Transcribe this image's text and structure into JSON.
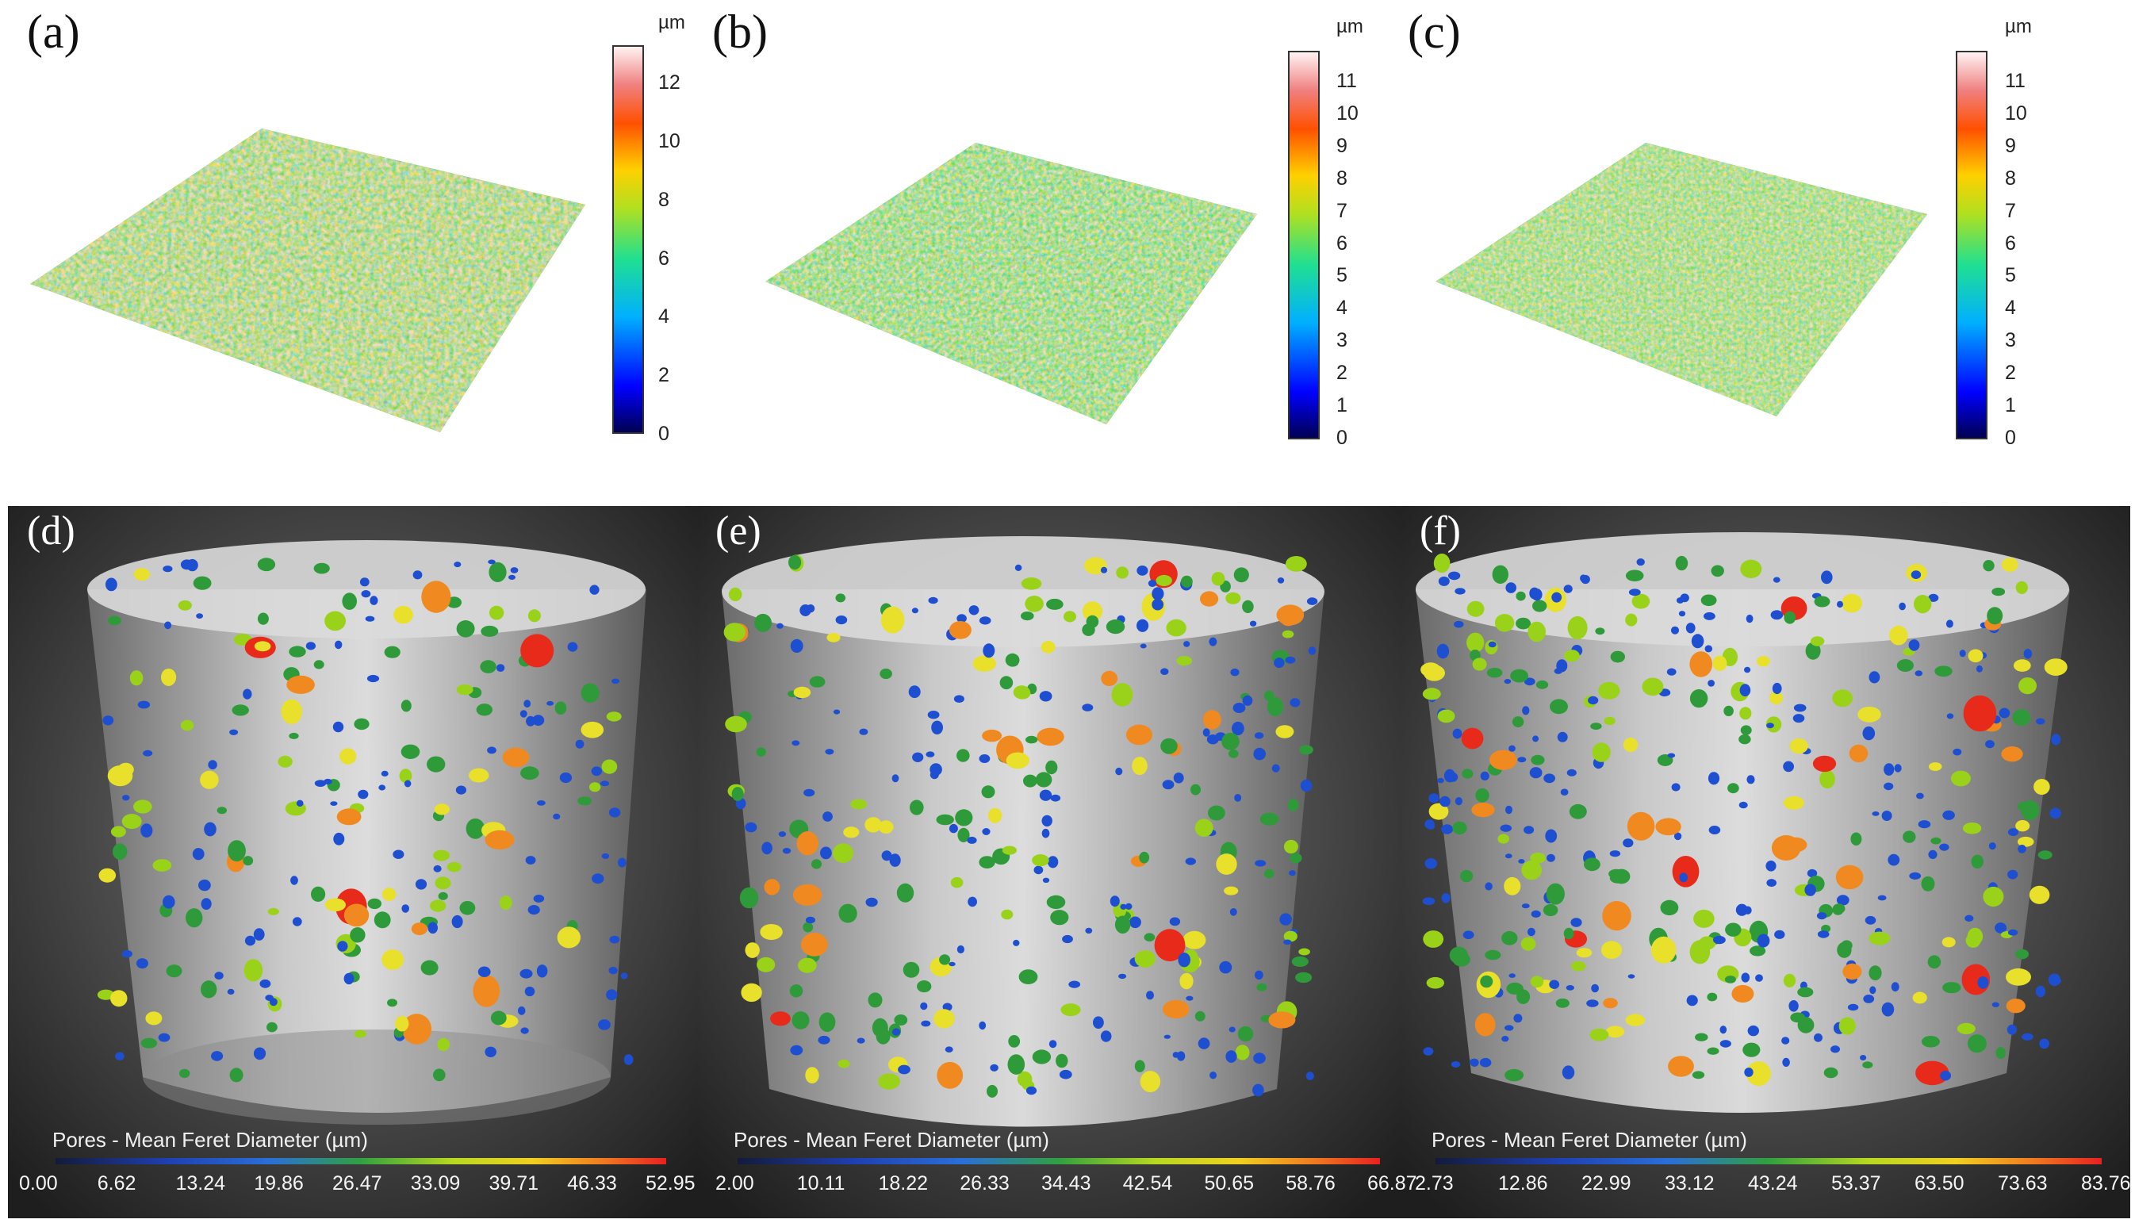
{
  "panels_top": [
    {
      "label": "(a)",
      "unit": "µm",
      "ticks": [
        "12",
        "10",
        "8",
        "6",
        "4",
        "2",
        "0"
      ]
    },
    {
      "label": "(b)",
      "unit": "µm",
      "ticks": [
        "11",
        "10",
        "9",
        "8",
        "7",
        "6",
        "5",
        "4",
        "3",
        "2",
        "1",
        "0"
      ]
    },
    {
      "label": "(c)",
      "unit": "µm",
      "ticks": [
        "11",
        "10",
        "9",
        "8",
        "7",
        "6",
        "5",
        "4",
        "3",
        "2",
        "1",
        "0"
      ]
    }
  ],
  "panels_bottom": [
    {
      "label": "(d)",
      "colorbar_title": "Pores - Mean Feret Diameter (µm)",
      "ticks": [
        "0.00",
        "6.62",
        "13.24",
        "19.86",
        "26.47",
        "33.09",
        "39.71",
        "46.33",
        "52.95"
      ]
    },
    {
      "label": "(e)",
      "colorbar_title": "Pores - Mean Feret Diameter (µm)",
      "ticks": [
        "2.00",
        "10.11",
        "18.22",
        "26.33",
        "34.43",
        "42.54",
        "50.65",
        "58.76",
        "66.87"
      ]
    },
    {
      "label": "(f)",
      "colorbar_title": "Pores - Mean Feret Diameter (µm)",
      "ticks": [
        "2.73",
        "12.86",
        "22.99",
        "33.12",
        "43.24",
        "53.37",
        "63.50",
        "73.63",
        "83.76"
      ]
    }
  ],
  "colors": {
    "jet": [
      "#00007f",
      "#0000ff",
      "#0080ff",
      "#00e0ff",
      "#30e080",
      "#a0e020",
      "#ffe000",
      "#ff8000",
      "#e02000",
      "#fff0f0"
    ],
    "pore_scale": [
      "#1a2a6c",
      "#1f4fd1",
      "#2f9a3a",
      "#9ad21a",
      "#e8e02a",
      "#f08a20",
      "#e82a1a"
    ]
  }
}
